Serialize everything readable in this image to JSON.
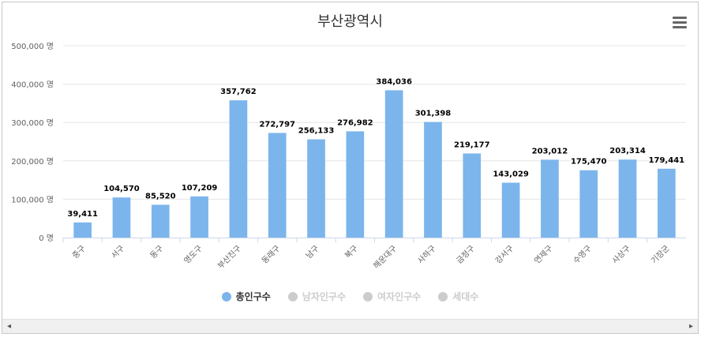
{
  "chart_data": {
    "type": "bar",
    "title": "부산광역시",
    "categories": [
      "중구",
      "서구",
      "동구",
      "영도구",
      "부산진구",
      "동래구",
      "남구",
      "북구",
      "해운대구",
      "사하구",
      "금정구",
      "강서구",
      "연제구",
      "수영구",
      "사상구",
      "기장군"
    ],
    "values": [
      39411,
      104570,
      85520,
      107209,
      357762,
      272797,
      256133,
      276982,
      384036,
      301398,
      219177,
      143029,
      203012,
      175470,
      203314,
      179441
    ],
    "value_labels": [
      "39,411",
      "104,570",
      "85,520",
      "107,209",
      "357,762",
      "272,797",
      "256,133",
      "276,982",
      "384,036",
      "301,398",
      "219,177",
      "143,029",
      "203,012",
      "175,470",
      "203,314",
      "179,441"
    ],
    "ylim": [
      0,
      500000
    ],
    "ytick_labels": [
      "0 명",
      "100,000 명",
      "200,000 명",
      "300,000 명",
      "400,000 명",
      "500,000 명"
    ],
    "grid": true,
    "legend": [
      "총인구수",
      "남자인구수",
      "여자인구수",
      "세대수"
    ],
    "legend_position": "bottom-center",
    "bar_color": "#7cb5ec"
  },
  "legend_items": [
    {
      "label": "총인구수",
      "active": true,
      "color": "#7cb5ec"
    },
    {
      "label": "남자인구수",
      "active": false,
      "color": "#cccccc"
    },
    {
      "label": "여자인구수",
      "active": false,
      "color": "#cccccc"
    },
    {
      "label": "세대수",
      "active": false,
      "color": "#cccccc"
    }
  ],
  "scrollbar": {
    "left_arrow": "◂",
    "right_arrow": "▸"
  },
  "menu": {
    "icon": "hamburger-menu-icon"
  }
}
